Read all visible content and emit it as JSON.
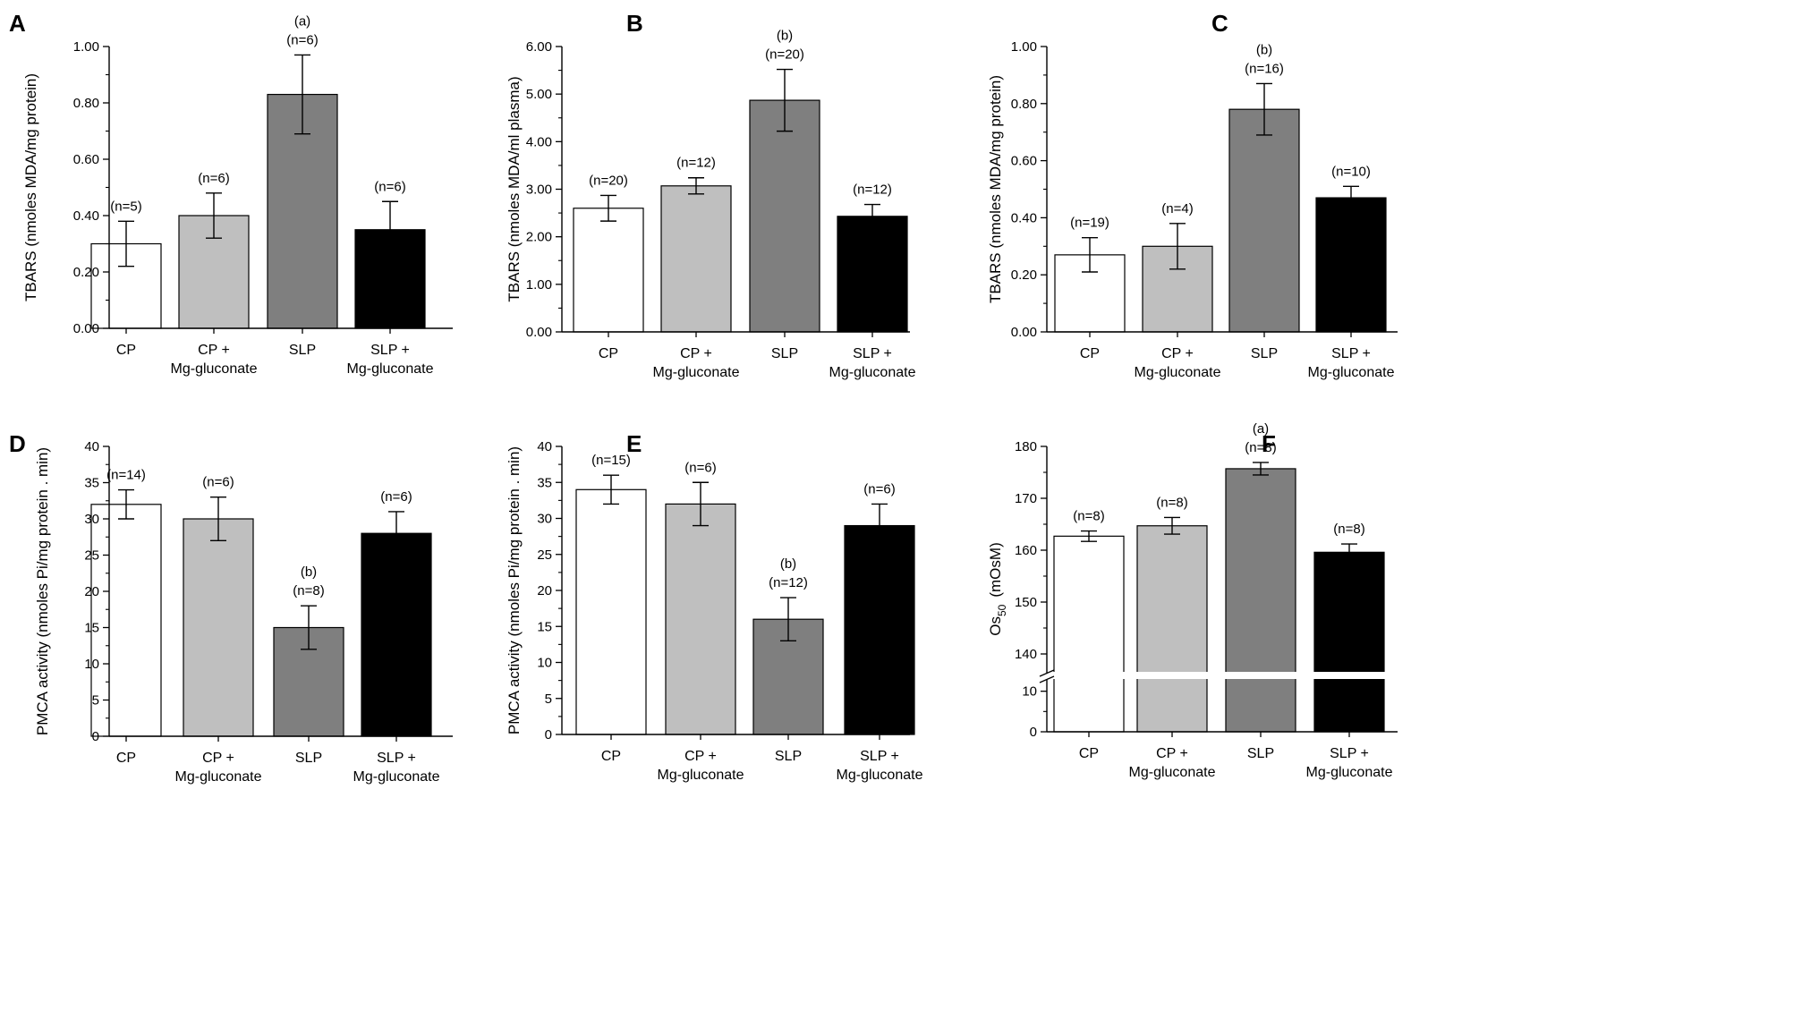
{
  "chart_data": [
    {
      "panel": "A",
      "type": "bar",
      "ylabel": "TBARS (nmoles MDA/mg protein)",
      "ylim": [
        0,
        1.0
      ],
      "yticks": [
        "0.00",
        "0.20",
        "0.40",
        "0.60",
        "0.80",
        "1.00"
      ],
      "categories": [
        [
          "CP"
        ],
        [
          "CP +",
          "Mg-gluconate"
        ],
        [
          "SLP"
        ],
        [
          "SLP +",
          "Mg-gluconate"
        ]
      ],
      "values": [
        0.3,
        0.4,
        0.83,
        0.35
      ],
      "errors": [
        0.08,
        0.08,
        0.14,
        0.1
      ],
      "annotations": [
        [
          "(n=5)"
        ],
        [
          "(n=6)"
        ],
        [
          "(a)",
          "(n=6)"
        ],
        [
          "(n=6)"
        ]
      ],
      "colors": [
        "#ffffff",
        "#bfbfbf",
        "#7f7f7f",
        "#000000"
      ]
    },
    {
      "panel": "B",
      "type": "bar",
      "ylabel": "TBARS (nmoles MDA/ml plasma)",
      "ylim": [
        0,
        6.0
      ],
      "yticks": [
        "0.00",
        "1.00",
        "2.00",
        "3.00",
        "4.00",
        "5.00",
        "6.00"
      ],
      "categories": [
        [
          "CP"
        ],
        [
          "CP +",
          "Mg-gluconate"
        ],
        [
          "SLP"
        ],
        [
          "SLP +",
          "Mg-gluconate"
        ]
      ],
      "values": [
        2.6,
        3.07,
        4.87,
        2.43
      ],
      "errors": [
        0.27,
        0.17,
        0.65,
        0.25
      ],
      "annotations": [
        [
          "(n=20)"
        ],
        [
          "(n=12)"
        ],
        [
          "(b)",
          "(n=20)"
        ],
        [
          "(n=12)"
        ]
      ],
      "colors": [
        "#ffffff",
        "#bfbfbf",
        "#7f7f7f",
        "#000000"
      ]
    },
    {
      "panel": "C",
      "type": "bar",
      "ylabel": "TBARS (nmoles MDA/mg protein)",
      "ylim": [
        0,
        1.0
      ],
      "yticks": [
        "0.00",
        "0.20",
        "0.40",
        "0.60",
        "0.80",
        "1.00"
      ],
      "categories": [
        [
          "CP"
        ],
        [
          "CP +",
          "Mg-gluconate"
        ],
        [
          "SLP"
        ],
        [
          "SLP +",
          "Mg-gluconate"
        ]
      ],
      "values": [
        0.27,
        0.3,
        0.78,
        0.47
      ],
      "errors": [
        0.06,
        0.08,
        0.09,
        0.04
      ],
      "annotations": [
        [
          "(n=19)"
        ],
        [
          "(n=4)"
        ],
        [
          "(b)",
          "(n=16)"
        ],
        [
          "(n=10)"
        ]
      ],
      "colors": [
        "#ffffff",
        "#bfbfbf",
        "#7f7f7f",
        "#000000"
      ]
    },
    {
      "panel": "D",
      "type": "bar",
      "ylabel": "PMCA activity (nmoles Pi/mg protein . min)",
      "ylim": [
        0,
        40
      ],
      "yticks": [
        "0",
        "5",
        "10",
        "15",
        "20",
        "25",
        "30",
        "35",
        "40"
      ],
      "categories": [
        [
          "CP"
        ],
        [
          "CP +",
          "Mg-gluconate"
        ],
        [
          "SLP"
        ],
        [
          "SLP +",
          "Mg-gluconate"
        ]
      ],
      "values": [
        32,
        30,
        15,
        28
      ],
      "errors": [
        2,
        3,
        3,
        3
      ],
      "annotations": [
        [
          "(n=14)"
        ],
        [
          "(n=6)"
        ],
        [
          "(b)",
          "(n=8)"
        ],
        [
          "(n=6)"
        ]
      ],
      "colors": [
        "#ffffff",
        "#bfbfbf",
        "#7f7f7f",
        "#000000"
      ]
    },
    {
      "panel": "E",
      "type": "bar",
      "ylabel": "PMCA activity (nmoles Pi/mg protein . min)",
      "ylim": [
        0,
        40
      ],
      "yticks": [
        "0",
        "5",
        "10",
        "15",
        "20",
        "25",
        "30",
        "35",
        "40"
      ],
      "categories": [
        [
          "CP"
        ],
        [
          "CP +",
          "Mg-gluconate"
        ],
        [
          "SLP"
        ],
        [
          "SLP +",
          "Mg-gluconate"
        ]
      ],
      "values": [
        34,
        32,
        16,
        29
      ],
      "errors": [
        2,
        3,
        3,
        3
      ],
      "annotations": [
        [
          "(n=15)"
        ],
        [
          "(n=6)"
        ],
        [
          "(b)",
          "(n=12)"
        ],
        [
          "(n=6)"
        ]
      ],
      "colors": [
        "#ffffff",
        "#bfbfbf",
        "#7f7f7f",
        "#000000"
      ]
    },
    {
      "panel": "F",
      "type": "bar",
      "ylabel": "Os50 (mOsM)",
      "ylabel_main": "Os",
      "ylabel_sub": "50",
      "ylabel_unit": "(mOsM)",
      "axis_break": true,
      "lower_range": [
        0,
        15
      ],
      "upper_range": [
        135,
        180
      ],
      "yticks_lower": [
        "0",
        "10"
      ],
      "yticks_upper": [
        "140",
        "150",
        "160",
        "170",
        "180"
      ],
      "categories": [
        [
          "CP"
        ],
        [
          "CP +",
          "Mg-gluconate"
        ],
        [
          "SLP"
        ],
        [
          "SLP +",
          "Mg-gluconate"
        ]
      ],
      "values": [
        162.7,
        164.7,
        175.7,
        159.6
      ],
      "errors": [
        1.0,
        1.6,
        1.2,
        1.6
      ],
      "annotations": [
        [
          "(n=8)"
        ],
        [
          "(n=8)"
        ],
        [
          "(a)",
          "(n=8)"
        ],
        [
          "(n=8)"
        ]
      ],
      "colors": [
        "#ffffff",
        "#bfbfbf",
        "#7f7f7f",
        "#000000"
      ]
    }
  ]
}
